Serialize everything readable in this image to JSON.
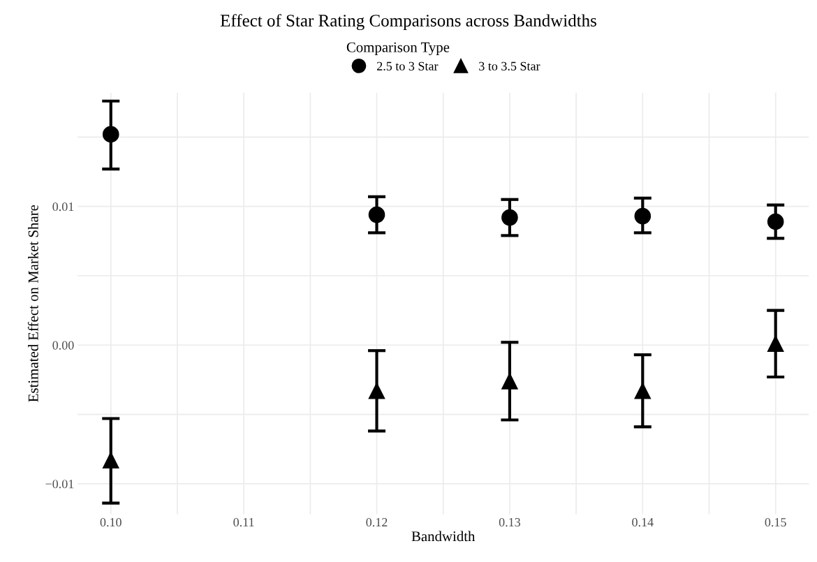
{
  "chart_data": {
    "type": "scatter",
    "title": "Effect of Star Rating Comparisons across Bandwidths",
    "xlabel": "Bandwidth",
    "ylabel": "Estimated Effect on Market Share",
    "legend_title": "Comparison Type",
    "legend": "top",
    "xlim": [
      0.0975,
      0.1525
    ],
    "xticks": [
      {
        "value": 0.1,
        "label": "0.10"
      },
      {
        "value": 0.105,
        "label": null
      },
      {
        "value": 0.11,
        "label": "0.11"
      },
      {
        "value": 0.115,
        "label": null
      },
      {
        "value": 0.12,
        "label": "0.12"
      },
      {
        "value": 0.125,
        "label": null
      },
      {
        "value": 0.13,
        "label": "0.13"
      },
      {
        "value": 0.135,
        "label": null
      },
      {
        "value": 0.14,
        "label": "0.14"
      },
      {
        "value": 0.145,
        "label": null
      },
      {
        "value": 0.15,
        "label": "0.15"
      }
    ],
    "ylim": [
      -0.0122,
      0.0182
    ],
    "yticks": [
      {
        "value": -0.01,
        "label": "−0.01"
      },
      {
        "value": -0.005,
        "label": null
      },
      {
        "value": 0.0,
        "label": "0.00"
      },
      {
        "value": 0.005,
        "label": null
      },
      {
        "value": 0.01,
        "label": "0.01"
      },
      {
        "value": 0.015,
        "label": null
      }
    ],
    "grid": true,
    "series": [
      {
        "name": "2.5 to 3 Star",
        "color": "#000000",
        "marker": "circle",
        "x": [
          0.1,
          0.12,
          0.13,
          0.14,
          0.15
        ],
        "values": [
          0.0152,
          0.0094,
          0.0092,
          0.0093,
          0.0089
        ],
        "errors": [
          [
            0.0127,
            0.0176
          ],
          [
            0.0081,
            0.0107
          ],
          [
            0.0079,
            0.0105
          ],
          [
            0.0081,
            0.0106
          ],
          [
            0.0077,
            0.0101
          ]
        ]
      },
      {
        "name": "3 to 3.5 Star",
        "color": "#000000",
        "marker": "triangle",
        "x": [
          0.1,
          0.12,
          0.13,
          0.14,
          0.15
        ],
        "values": [
          -0.0083,
          -0.0033,
          -0.0026,
          -0.0033,
          0.0001
        ],
        "errors": [
          [
            -0.0114,
            -0.0053
          ],
          [
            -0.0062,
            -0.0004
          ],
          [
            -0.0054,
            0.0002
          ],
          [
            -0.0059,
            -0.0007
          ],
          [
            -0.0023,
            0.0025
          ]
        ]
      }
    ]
  }
}
